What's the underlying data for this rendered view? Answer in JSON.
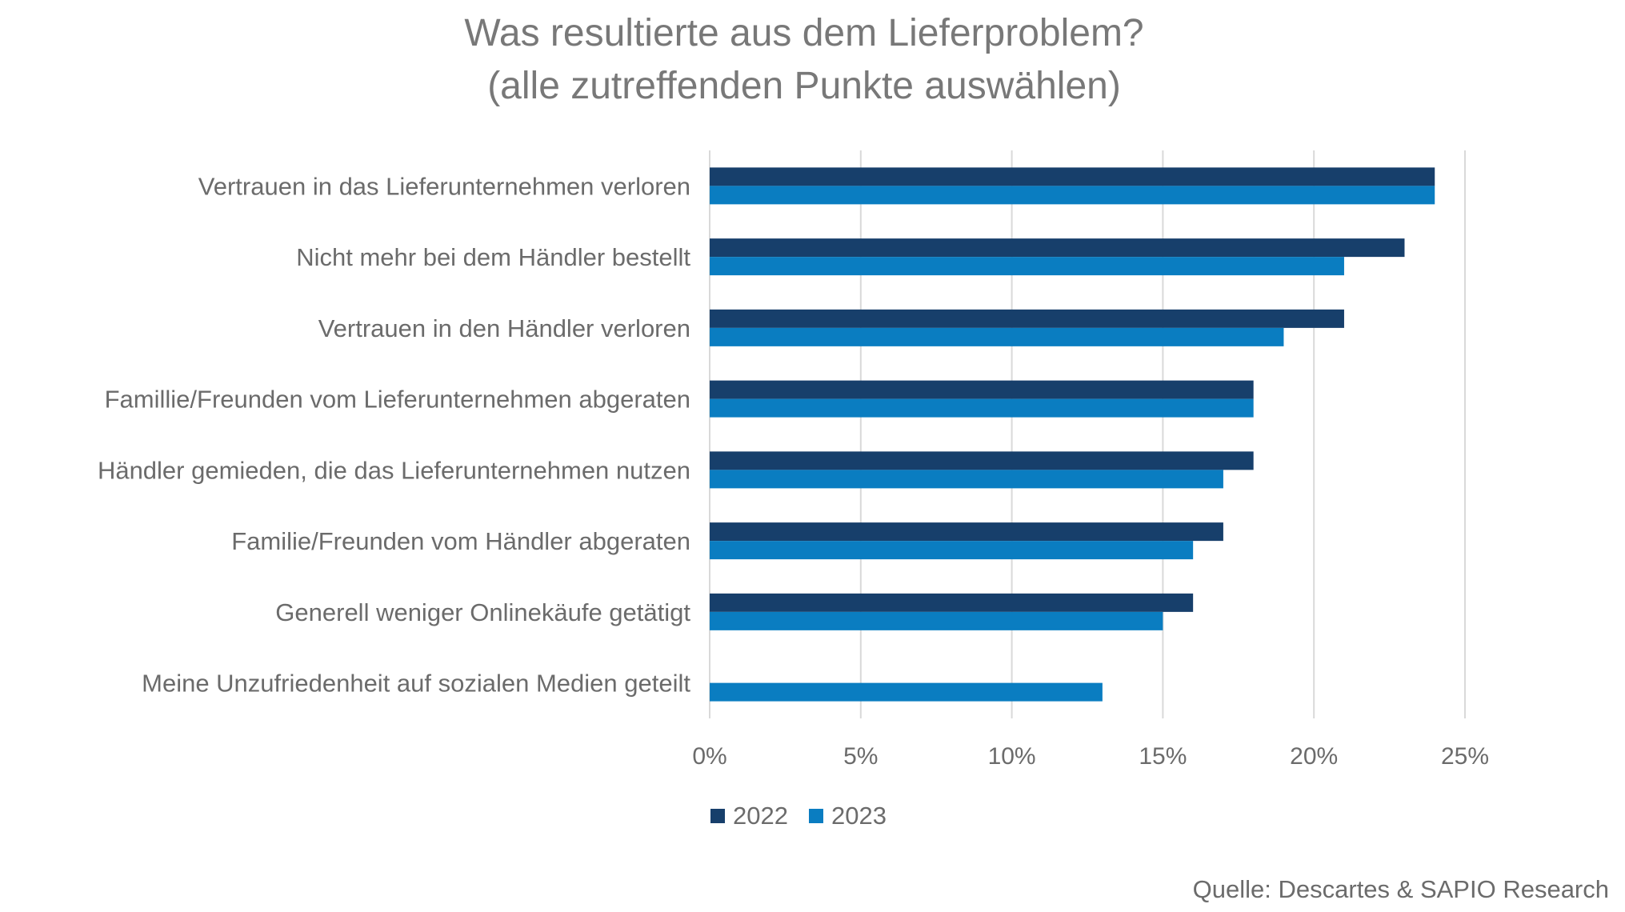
{
  "title_line1": "Was resultierte aus dem Lieferproblem?",
  "title_line2": "(alle zutreffenden Punkte auswählen)",
  "source": "Quelle: Descartes & SAPIO Research",
  "chart_data": {
    "type": "bar",
    "orientation": "horizontal",
    "categories": [
      "Vertrauen in das Lieferunternehmen verloren",
      "Nicht mehr bei dem Händler bestellt",
      "Vertrauen in den Händler verloren",
      "Famillie/Freunden vom Lieferunternehmen abgeraten",
      "Händler gemieden, die das Lieferunternehmen nutzen",
      "Familie/Freunden vom Händler abgeraten",
      "Generell weniger Onlinekäufe getätigt",
      "Meine Unzufriedenheit auf sozialen Medien geteilt"
    ],
    "series": [
      {
        "name": "2022",
        "color": "#173f6b",
        "values": [
          24,
          23,
          21,
          18,
          18,
          17,
          16,
          null
        ]
      },
      {
        "name": "2023",
        "color": "#0a7dc1",
        "values": [
          24,
          21,
          19,
          18,
          17,
          16,
          15,
          13
        ]
      }
    ],
    "xlim": [
      0,
      25
    ],
    "xticks": [
      0,
      5,
      10,
      15,
      20,
      25
    ],
    "xtick_labels": [
      "0%",
      "5%",
      "10%",
      "15%",
      "20%",
      "25%"
    ],
    "grid": true,
    "legend_position": "bottom"
  }
}
